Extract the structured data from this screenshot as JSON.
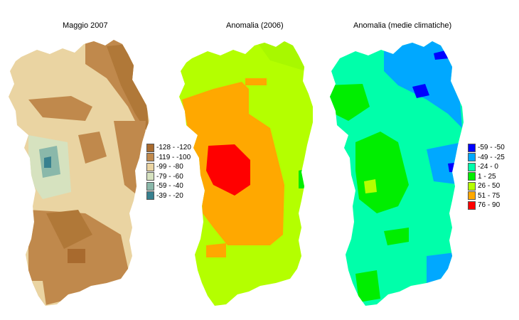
{
  "panels": [
    {
      "title": "Maggio 2007",
      "legend": [
        {
          "label": "-128 - -120",
          "color": "#a86a2e"
        },
        {
          "label": "-119 - -100",
          "color": "#c0894c"
        },
        {
          "label": "-99 - -80",
          "color": "#ead4a2"
        },
        {
          "label": "-79 - -60",
          "color": "#d6e2bf"
        },
        {
          "label": "-59 - -40",
          "color": "#8ab8aa"
        },
        {
          "label": "-39 - -20",
          "color": "#37808f"
        }
      ]
    },
    {
      "title": "Anomalia (2006)",
      "legend": []
    },
    {
      "title": "Anomalia (medie climatiche)",
      "legend": [
        {
          "label": "-59 - -50",
          "color": "#0000ff"
        },
        {
          "label": "-49 - -25",
          "color": "#00a8ff"
        },
        {
          "label": "-24 - 0",
          "color": "#00ffaa"
        },
        {
          "label": "1 - 25",
          "color": "#00ee00"
        },
        {
          "label": "26 - 50",
          "color": "#b4ff00"
        },
        {
          "label": "51 - 75",
          "color": "#ffa800"
        },
        {
          "label": "76 - 90",
          "color": "#ff0000"
        }
      ]
    }
  ]
}
